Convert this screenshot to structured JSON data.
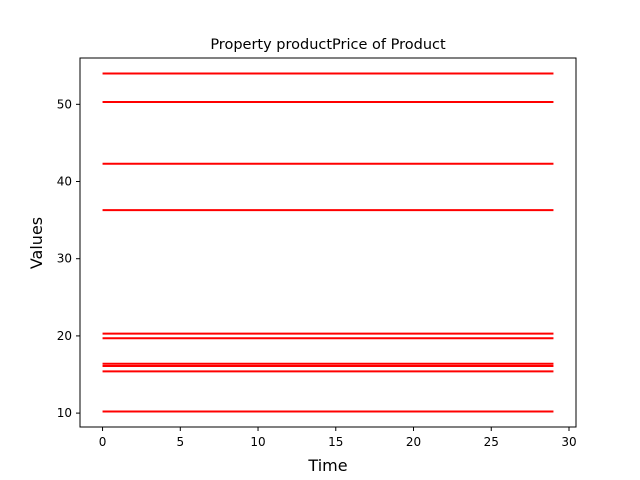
{
  "chart_data": {
    "type": "line",
    "title": "Property productPrice of Product",
    "xlabel": "Time",
    "ylabel": "Values",
    "xlim": [
      -1.45,
      30.45
    ],
    "ylim": [
      8.2,
      56.0
    ],
    "xticks": [
      0,
      5,
      10,
      15,
      20,
      25,
      30
    ],
    "yticks": [
      10,
      20,
      30,
      40,
      50
    ],
    "x": [
      0,
      29
    ],
    "line_color": "#ff0000",
    "grid": false,
    "series": [
      {
        "values": [
          54.0,
          54.0
        ]
      },
      {
        "values": [
          50.3,
          50.3
        ]
      },
      {
        "values": [
          42.3,
          42.3
        ]
      },
      {
        "values": [
          36.3,
          36.3
        ]
      },
      {
        "values": [
          20.3,
          20.3
        ]
      },
      {
        "values": [
          19.7,
          19.7
        ]
      },
      {
        "values": [
          16.4,
          16.4
        ]
      },
      {
        "values": [
          16.1,
          16.1
        ]
      },
      {
        "values": [
          15.4,
          15.4
        ]
      },
      {
        "values": [
          10.2,
          10.2
        ]
      }
    ]
  }
}
